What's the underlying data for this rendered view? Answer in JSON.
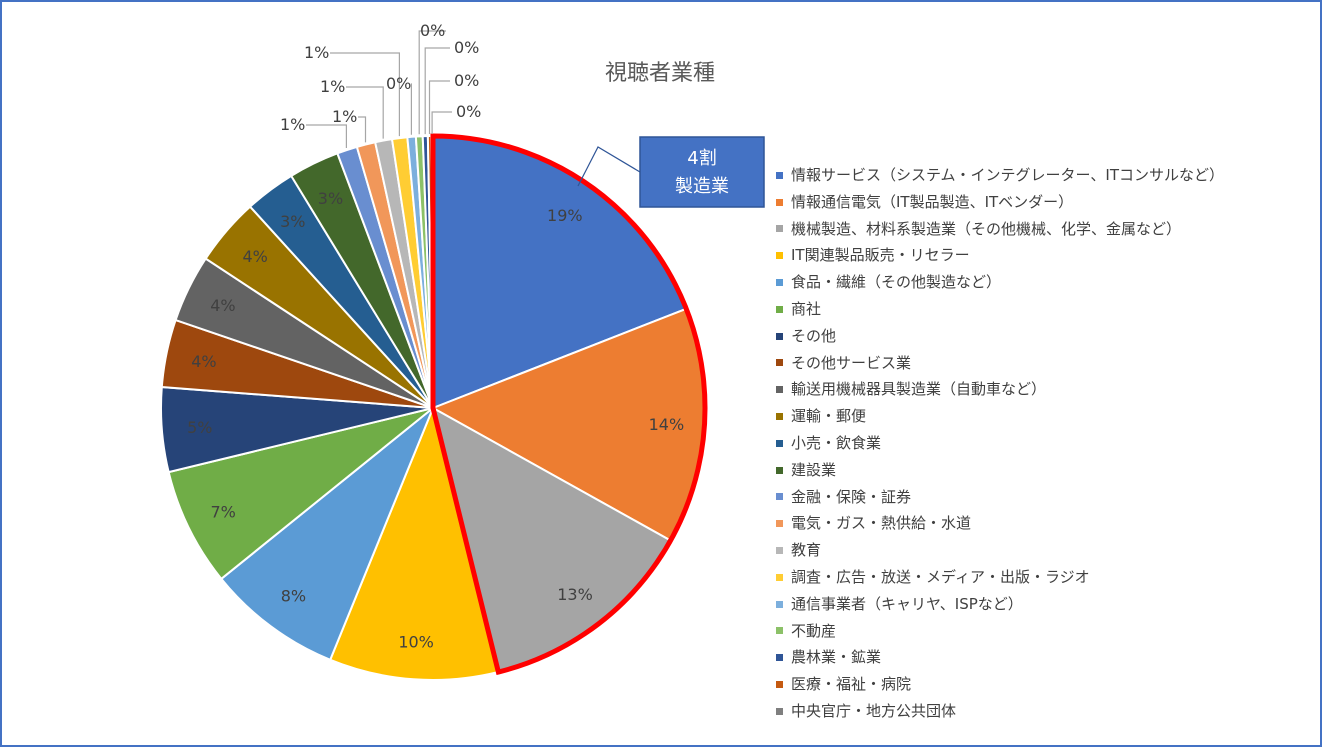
{
  "chart_data": {
    "type": "pie",
    "title": "視聴者業種",
    "legend_position": "right",
    "slices": [
      {
        "name": "情報サービス（システム・インテグレーター、ITコンサルなど）",
        "value": 19,
        "label": "19%",
        "color": "#4472C4"
      },
      {
        "name": "情報通信電気（IT製品製造、ITベンダー）",
        "value": 14,
        "label": "14%",
        "color": "#ED7D31"
      },
      {
        "name": "機械製造、材料系製造業（その他機械、化学、金属など）",
        "value": 13,
        "label": "13%",
        "color": "#A5A5A5"
      },
      {
        "name": "IT関連製品販売・リセラー",
        "value": 10,
        "label": "10%",
        "color": "#FFC000"
      },
      {
        "name": "食品・繊維（その他製造など）",
        "value": 8,
        "label": "8%",
        "color": "#5B9BD5"
      },
      {
        "name": "商社",
        "value": 7,
        "label": "7%",
        "color": "#70AD47"
      },
      {
        "name": "その他",
        "value": 5,
        "label": "5%",
        "color": "#264478"
      },
      {
        "name": "その他サービス業",
        "value": 4,
        "label": "4%",
        "color": "#9E480E"
      },
      {
        "name": "輸送用機械器具製造業（自動車など）",
        "value": 4,
        "label": "4%",
        "color": "#636363"
      },
      {
        "name": "運輸・郵便",
        "value": 4,
        "label": "4%",
        "color": "#997300"
      },
      {
        "name": "小売・飲食業",
        "value": 3,
        "label": "3%",
        "color": "#255E91"
      },
      {
        "name": "建設業",
        "value": 3,
        "label": "3%",
        "color": "#43682B"
      },
      {
        "name": "金融・保険・証券",
        "value": 1.2,
        "label": "1%",
        "color": "#698ED0"
      },
      {
        "name": "電気・ガス・熱供給・水道",
        "value": 1.1,
        "label": "1%",
        "color": "#F1975A"
      },
      {
        "name": "教育",
        "value": 1.0,
        "label": "1%",
        "color": "#B7B7B7"
      },
      {
        "name": "調査・広告・放送・メディア・出版・ラジオ",
        "value": 0.9,
        "label": "1%",
        "color": "#FFCD33"
      },
      {
        "name": "通信事業者（キャリヤ、ISPなど）",
        "value": 0.5,
        "label": "0%",
        "color": "#7CAFDD"
      },
      {
        "name": "不動産",
        "value": 0.4,
        "label": "0%",
        "color": "#8CC168"
      },
      {
        "name": "農林業・鉱業",
        "value": 0.3,
        "label": "0%",
        "color": "#2F5597"
      },
      {
        "name": "医療・福祉・病院",
        "value": 0.2,
        "label": "0%",
        "color": "#C55A11"
      },
      {
        "name": "中央官庁・地方公共団体",
        "value": 0.1,
        "label": "0%",
        "color": "#7F7F7F"
      }
    ],
    "highlight": {
      "slices": [
        0,
        1,
        2
      ],
      "color": "#FF0000",
      "callout_text": [
        "4割",
        "製造業"
      ],
      "callout_color": "#4472C4"
    }
  }
}
